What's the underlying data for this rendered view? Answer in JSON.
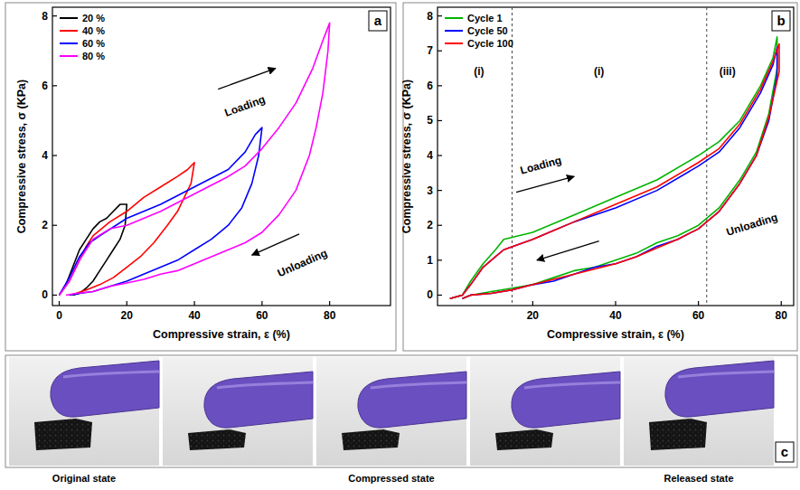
{
  "chart_data": [
    {
      "type": "line",
      "title": "a",
      "x_label": "Compressive strain, ε (%)",
      "y_label": "Compressive stress, σ (KPa)",
      "xlim": [
        -2,
        98
      ],
      "ylim": [
        -0.3,
        8.25
      ],
      "xticks": [
        0,
        20,
        40,
        60,
        80
      ],
      "yticks": [
        0,
        2,
        4,
        6,
        8
      ],
      "legend": "upper left",
      "series": [
        {
          "name": "20 %",
          "color": "#000000",
          "x": [
            0,
            2,
            4,
            6,
            8,
            10,
            12,
            14,
            16,
            18,
            20,
            19.5,
            18,
            16,
            14,
            12,
            10,
            8,
            6,
            4
          ],
          "values": [
            0,
            0.3,
            0.8,
            1.3,
            1.6,
            1.9,
            2.1,
            2.2,
            2.4,
            2.6,
            2.6,
            2.0,
            1.6,
            1.3,
            1.0,
            0.7,
            0.4,
            0.2,
            0.05,
            0
          ]
        },
        {
          "name": "40 %",
          "color": "#ff0000",
          "x": [
            0,
            3,
            6,
            8,
            10,
            15,
            20,
            25,
            30,
            35,
            38,
            40,
            39,
            37,
            35,
            32,
            28,
            24,
            20,
            16,
            12,
            8,
            5,
            3
          ],
          "values": [
            0,
            0.4,
            1.0,
            1.4,
            1.7,
            2.1,
            2.4,
            2.8,
            3.1,
            3.4,
            3.6,
            3.8,
            3.2,
            2.8,
            2.4,
            2.0,
            1.5,
            1.1,
            0.8,
            0.5,
            0.3,
            0.15,
            0.05,
            0
          ]
        },
        {
          "name": "60 %",
          "color": "#0000ff",
          "x": [
            0,
            3,
            6,
            9,
            12,
            20,
            30,
            40,
            50,
            55,
            58,
            60,
            59,
            57,
            54,
            50,
            45,
            40,
            35,
            30,
            25,
            20,
            15,
            10,
            6,
            3
          ],
          "values": [
            0,
            0.5,
            1.1,
            1.5,
            1.7,
            2.2,
            2.6,
            3.1,
            3.6,
            4.1,
            4.6,
            4.8,
            4.0,
            3.2,
            2.5,
            2.0,
            1.6,
            1.3,
            1.0,
            0.8,
            0.6,
            0.4,
            0.25,
            0.1,
            0.05,
            0
          ]
        },
        {
          "name": "80 %",
          "color": "#ff00ff",
          "x": [
            0,
            3,
            6,
            10,
            15,
            20,
            30,
            40,
            50,
            55,
            60,
            65,
            70,
            75,
            78,
            80,
            79.5,
            78,
            76,
            74,
            70,
            65,
            60,
            55,
            50,
            45,
            40,
            35,
            30,
            25,
            20,
            15,
            10,
            5,
            2
          ],
          "values": [
            0,
            0.4,
            1.0,
            1.6,
            1.9,
            2.0,
            2.4,
            2.9,
            3.4,
            3.7,
            4.2,
            4.8,
            5.5,
            6.5,
            7.3,
            7.8,
            7.0,
            5.8,
            4.8,
            4.0,
            3.0,
            2.3,
            1.8,
            1.5,
            1.3,
            1.1,
            0.9,
            0.7,
            0.6,
            0.45,
            0.35,
            0.25,
            0.1,
            0.05,
            0
          ]
        }
      ],
      "annotations": [
        {
          "text": "Loading",
          "x": 55,
          "y": 5.4,
          "arrow_from": [
            47,
            5.9
          ],
          "arrow_to": [
            64,
            6.5
          ]
        },
        {
          "text": "Unloading",
          "x": 72,
          "y": 0.9,
          "arrow_from": [
            71,
            1.75
          ],
          "arrow_to": [
            57,
            1.15
          ]
        }
      ]
    },
    {
      "type": "line",
      "title": "b",
      "x_label": "Compressive strain, ε (%)",
      "y_label": "Compressive stress, σ (KPa)",
      "xlim": [
        -3,
        83
      ],
      "ylim": [
        -0.3,
        8.25
      ],
      "xticks": [
        20,
        40,
        60,
        80
      ],
      "yticks": [
        0,
        1,
        2,
        3,
        4,
        5,
        6,
        7,
        8
      ],
      "legend": "upper left",
      "vlines": [
        15,
        62
      ],
      "series": [
        {
          "name": "Cycle 1",
          "color": "#00b400",
          "x": [
            0,
            3,
            5,
            8,
            11,
            13,
            20,
            30,
            40,
            50,
            60,
            65,
            70,
            75,
            78,
            79,
            79,
            77,
            74,
            70,
            65,
            60,
            55,
            50,
            45,
            40,
            35,
            30,
            25,
            20,
            15,
            10,
            5,
            3
          ],
          "values": [
            -0.1,
            0,
            0.4,
            0.9,
            1.3,
            1.6,
            1.8,
            2.3,
            2.8,
            3.3,
            4.0,
            4.4,
            5.0,
            6.0,
            6.8,
            7.4,
            6.5,
            5.2,
            4.1,
            3.3,
            2.5,
            2.0,
            1.7,
            1.5,
            1.2,
            1.0,
            0.8,
            0.7,
            0.5,
            0.3,
            0.2,
            0.1,
            0,
            -0.1
          ]
        },
        {
          "name": "Cycle 50",
          "color": "#0000ff",
          "x": [
            0,
            3,
            5,
            8,
            11,
            13,
            20,
            30,
            40,
            50,
            60,
            65,
            70,
            75,
            78,
            79,
            79,
            77,
            74,
            70,
            65,
            60,
            55,
            50,
            45,
            40,
            35,
            30,
            25,
            20,
            15,
            10,
            5,
            3
          ],
          "values": [
            -0.1,
            0,
            0.3,
            0.8,
            1.1,
            1.3,
            1.6,
            2.1,
            2.5,
            3.0,
            3.7,
            4.1,
            4.8,
            5.8,
            6.6,
            7.1,
            6.3,
            5.0,
            4.0,
            3.2,
            2.4,
            1.9,
            1.6,
            1.4,
            1.1,
            0.9,
            0.8,
            0.6,
            0.4,
            0.3,
            0.15,
            0.05,
            0,
            -0.1
          ]
        },
        {
          "name": "Cycle 100",
          "color": "#ff0000",
          "x": [
            0,
            3,
            5,
            8,
            11,
            13,
            20,
            30,
            40,
            50,
            60,
            65,
            70,
            75,
            78,
            79.5,
            79.5,
            77,
            74,
            70,
            65,
            60,
            55,
            50,
            45,
            40,
            35,
            30,
            25,
            20,
            15,
            10,
            5,
            3
          ],
          "values": [
            -0.1,
            0,
            0.3,
            0.8,
            1.1,
            1.3,
            1.6,
            2.1,
            2.6,
            3.1,
            3.8,
            4.2,
            4.9,
            5.9,
            6.7,
            7.2,
            6.4,
            5.1,
            4.0,
            3.2,
            2.4,
            1.9,
            1.6,
            1.35,
            1.1,
            0.9,
            0.75,
            0.6,
            0.45,
            0.3,
            0.15,
            0.05,
            0,
            -0.1
          ]
        }
      ],
      "annotations": [
        {
          "text": "(i)",
          "x": 7,
          "y": 6.4
        },
        {
          "text": "(i)",
          "x": 36,
          "y": 6.4
        },
        {
          "text": "(iii)",
          "x": 67,
          "y": 6.4
        },
        {
          "text": "Loading",
          "x": 22,
          "y": 3.7,
          "arrow_from": [
            16,
            2.95
          ],
          "arrow_to": [
            30,
            3.4
          ]
        },
        {
          "text": "Unloading",
          "x": 73,
          "y": 2.0,
          "arrow_from": [
            36,
            1.55
          ],
          "arrow_to": [
            21,
            1.0
          ]
        }
      ]
    }
  ],
  "photos": {
    "label": "c",
    "captions": [
      "Original state",
      "Compressed state",
      "Released state"
    ]
  }
}
